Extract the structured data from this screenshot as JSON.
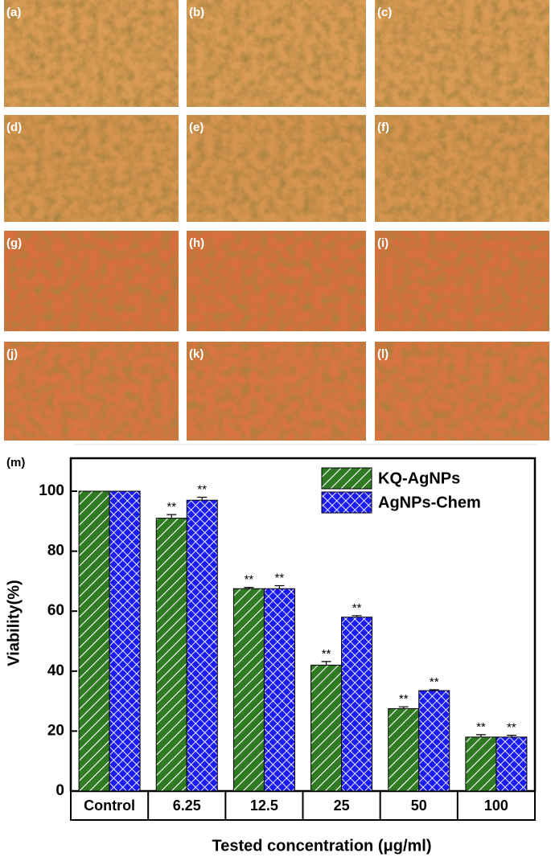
{
  "panels": [
    {
      "label": "(a)"
    },
    {
      "label": "(b)"
    },
    {
      "label": "(c)"
    },
    {
      "label": "(d)"
    },
    {
      "label": "(e)"
    },
    {
      "label": "(f)"
    },
    {
      "label": "(g)"
    },
    {
      "label": "(h)"
    },
    {
      "label": "(i)"
    },
    {
      "label": "(j)"
    },
    {
      "label": "(k)"
    },
    {
      "label": "(l)"
    }
  ],
  "chart_data": {
    "type": "bar",
    "panel_label": "(m)",
    "ylabel": "Viability(%)",
    "xlabel": "Tested concentration (μg/ml)",
    "categories": [
      "Control",
      "6.25",
      "12.5",
      "25",
      "50",
      "100"
    ],
    "series": [
      {
        "name": "KQ-AgNPs",
        "color": "#2f7a23",
        "values": [
          100,
          91,
          67.5,
          42,
          27.5,
          18
        ],
        "errors": [
          0,
          1.2,
          0.4,
          1.2,
          0.6,
          0.8
        ],
        "significance": [
          null,
          "**",
          "**",
          "**",
          "**",
          "**"
        ]
      },
      {
        "name": "AgNPs-Chem",
        "color": "#1b1bf5",
        "values": [
          100,
          97,
          67.5,
          58,
          33.5,
          18
        ],
        "errors": [
          0,
          1,
          1,
          0.5,
          0.3,
          0.6
        ],
        "significance": [
          null,
          "**",
          "**",
          "**",
          "**",
          "**"
        ]
      }
    ],
    "ylim": [
      0,
      111
    ],
    "yticks": [
      0,
      20,
      40,
      60,
      80,
      100
    ]
  }
}
